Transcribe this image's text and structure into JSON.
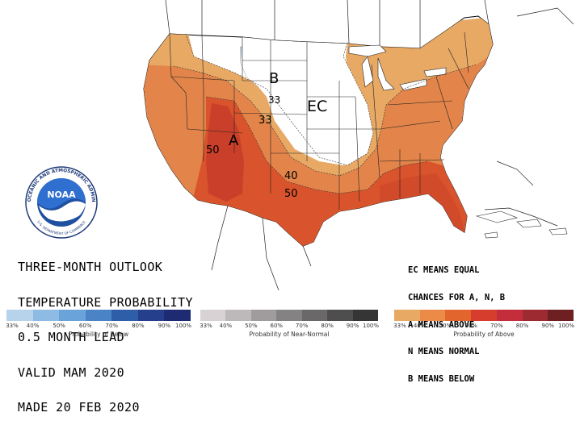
{
  "map": {
    "labels": {
      "B": "B",
      "A": "A",
      "EC": "EC",
      "c33_north": "33",
      "c33_mid": "33",
      "c40": "40",
      "c50_sw": "50",
      "c50_se": "50"
    },
    "colors": {
      "ocean": "#ffffff",
      "land": "#ffffff",
      "above_33": "#e8a965",
      "above_40": "#e3854a",
      "above_50": "#d9542c",
      "above_60": "#c43a26",
      "below_33": "#a9c8e6",
      "border": "#000000"
    }
  },
  "logo": {
    "name": "NOAA",
    "ring_text": "NATIONAL OCEANIC AND ATMOSPHERIC ADMINISTRATION",
    "bottom_text": "U.S. DEPARTMENT OF COMMERCE"
  },
  "title_block": {
    "line1": "THREE-MONTH OUTLOOK",
    "line2": "TEMPERATURE PROBABILITY",
    "line3": "0.5 MONTH LEAD",
    "line4": "VALID MAM 2020",
    "line5": "MADE 20 FEB 2020"
  },
  "legend_note": {
    "line1": "EC MEANS EQUAL",
    "line2": "CHANCES FOR A, N, B",
    "line3": "A MEANS ABOVE",
    "line4": "N MEANS NORMAL",
    "line5": "B MEANS BELOW"
  },
  "scales": {
    "below": {
      "title": "Probability of Below",
      "ticks": [
        "33%",
        "40%",
        "50%",
        "60%",
        "70%",
        "80%",
        "90%",
        "100%"
      ],
      "colors": [
        "#b7d3ec",
        "#8ebbe4",
        "#6aa3da",
        "#4b84c6",
        "#2f5ea8",
        "#263f8c",
        "#1e2a72"
      ]
    },
    "normal": {
      "title": "Probability of Near-Normal",
      "ticks": [
        "33%",
        "40%",
        "50%",
        "60%",
        "70%",
        "80%",
        "90%",
        "100%"
      ],
      "colors": [
        "#d9d2d4",
        "#bdb8ba",
        "#a09c9e",
        "#858283",
        "#6a6869",
        "#4f4e4f",
        "#363536"
      ]
    },
    "above": {
      "title": "Probability of Above",
      "ticks": [
        "33%",
        "40%",
        "50%",
        "60%",
        "70%",
        "80%",
        "90%",
        "100%"
      ],
      "colors": [
        "#e8a965",
        "#ec8a48",
        "#e3652e",
        "#d63d2c",
        "#c42e3c",
        "#9c2a30",
        "#6e1f22"
      ]
    }
  }
}
